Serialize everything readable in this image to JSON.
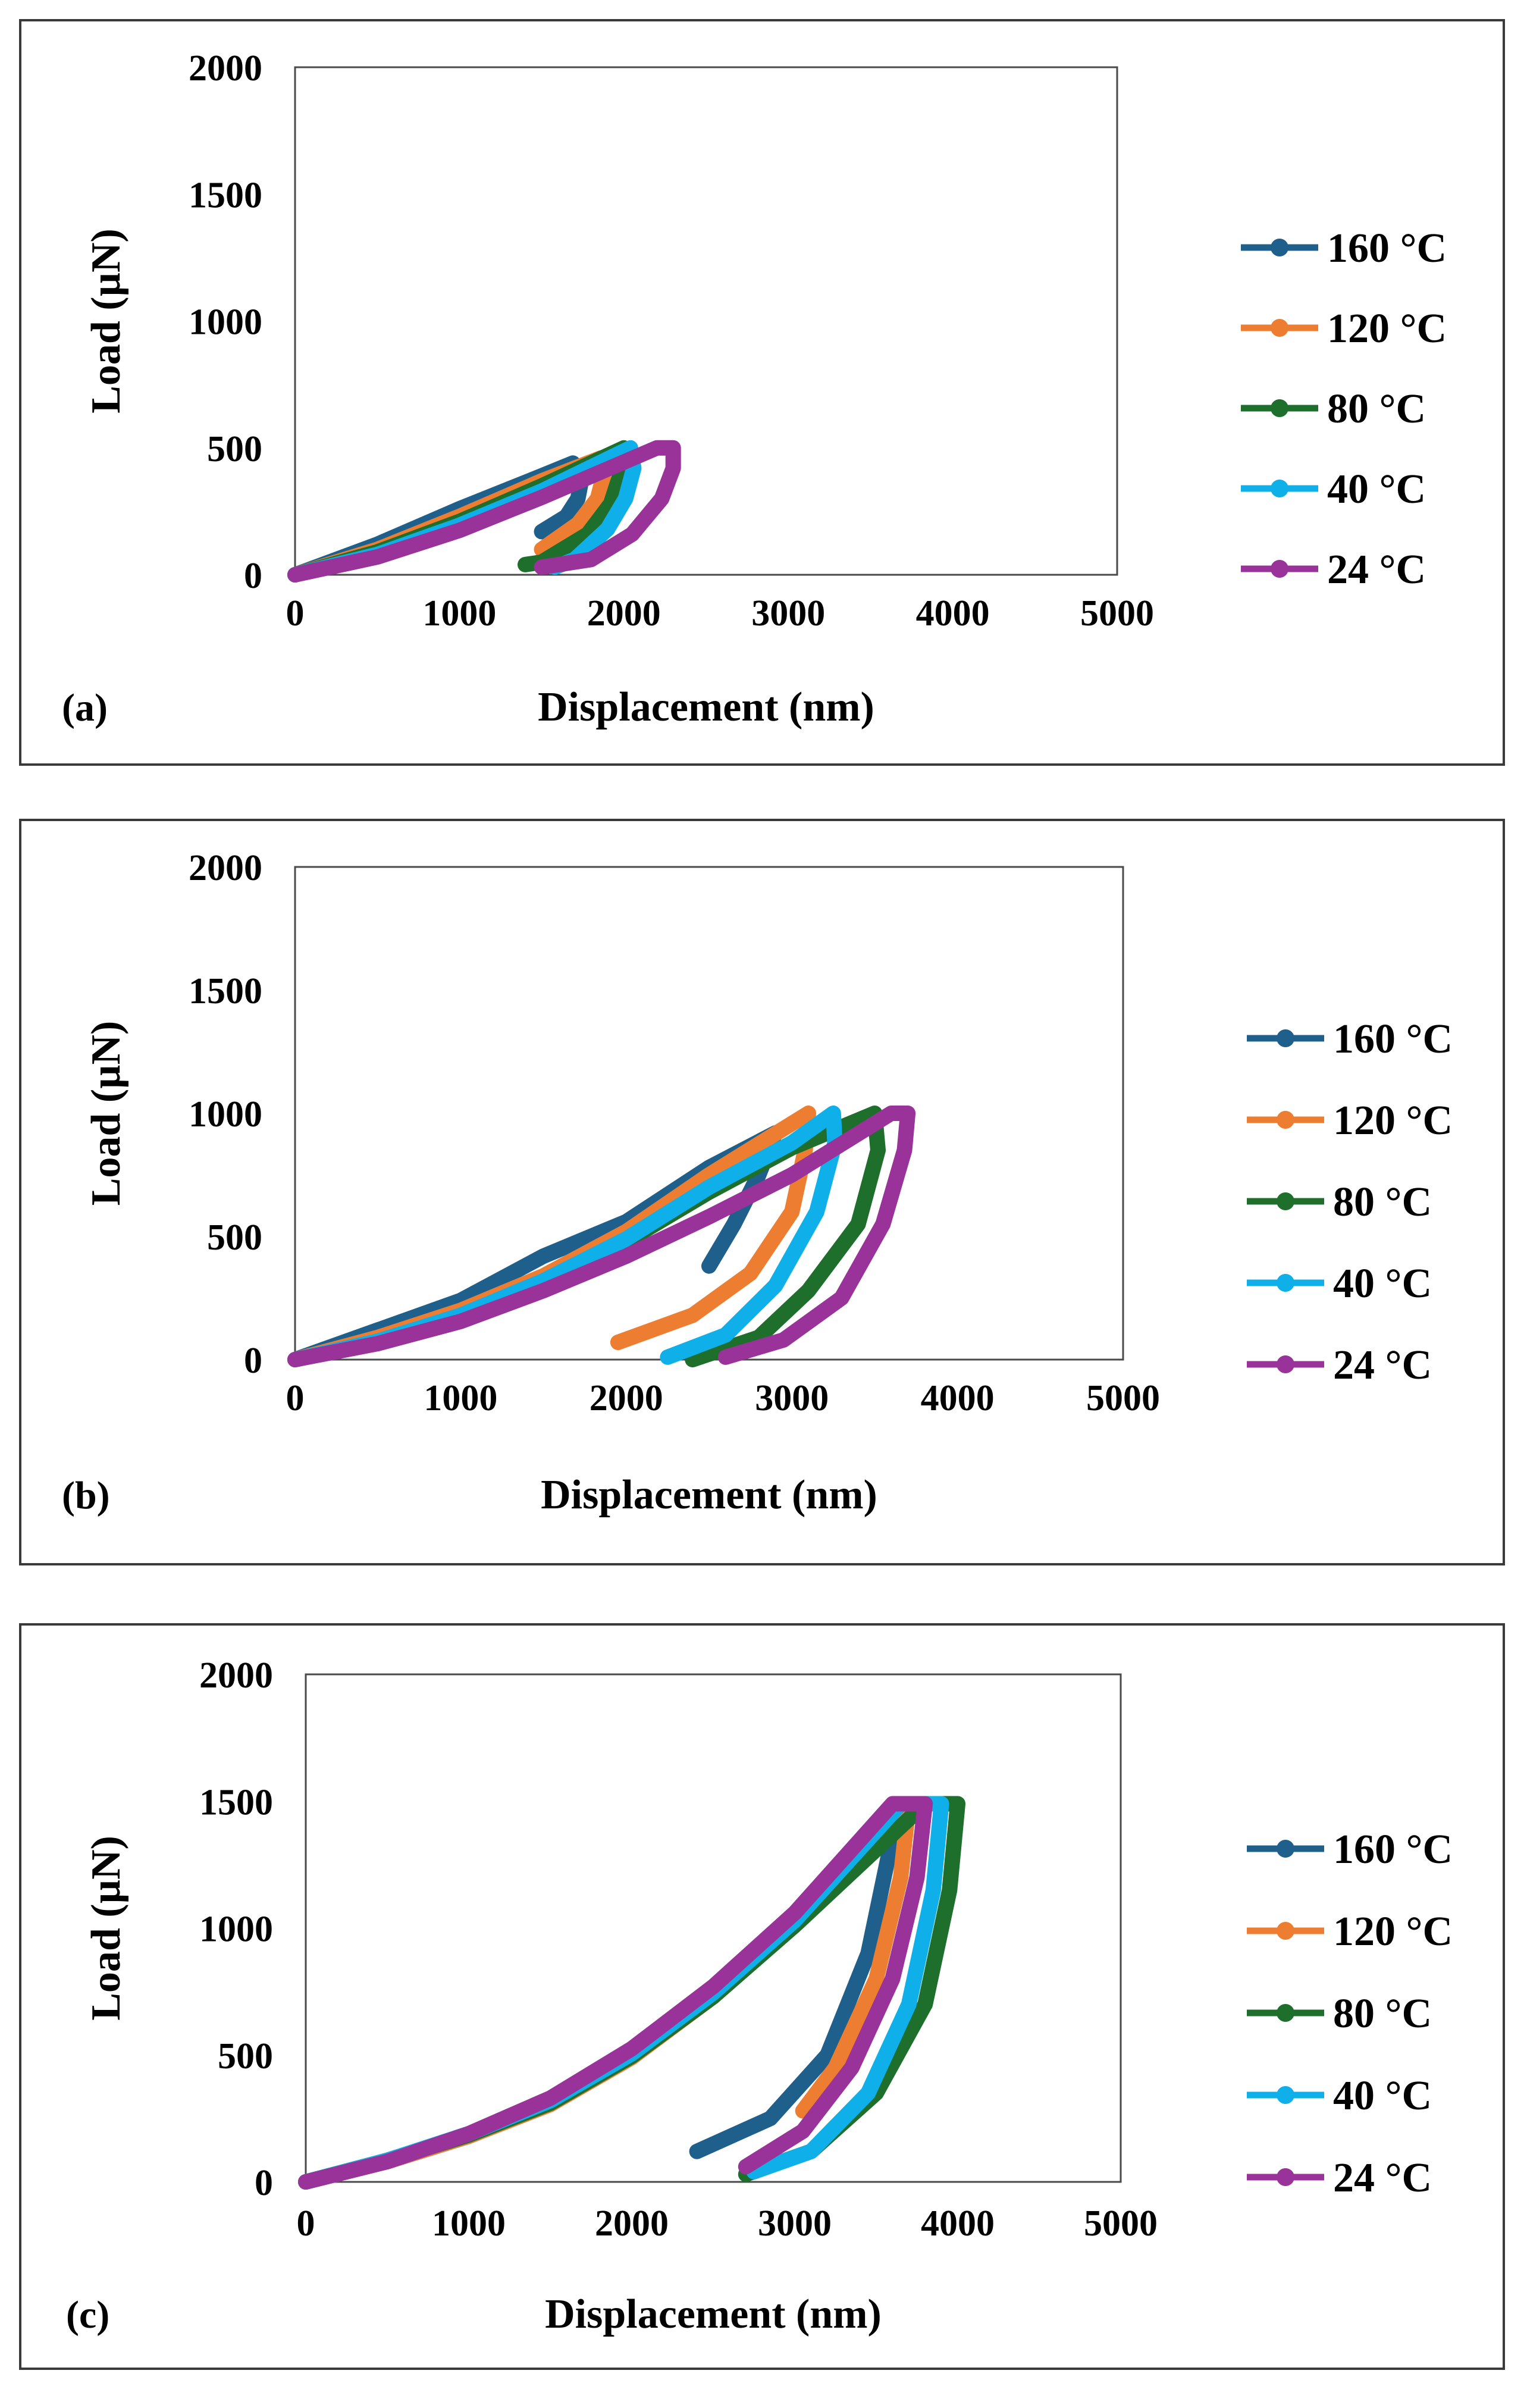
{
  "chart_data": [
    {
      "type": "line",
      "panel": "(a)",
      "xlabel": "Displacement (nm)",
      "ylabel": "Load (µN)",
      "xlim": [
        0,
        5000
      ],
      "ylim": [
        0,
        2000
      ],
      "xticks": [
        "0",
        "1000",
        "2000",
        "3000",
        "4000",
        "5000"
      ],
      "yticks": [
        "0",
        "500",
        "1000",
        "1500",
        "2000"
      ],
      "legend_position": "right",
      "series": [
        {
          "name": "160 °C",
          "color": "#1f5f8b",
          "loading": [
            [
              0,
              0
            ],
            [
              500,
              120
            ],
            [
              1000,
              260
            ],
            [
              1500,
              390
            ],
            [
              1690,
              440
            ]
          ],
          "unloading": [
            [
              1690,
              440
            ],
            [
              1750,
              400
            ],
            [
              1720,
              300
            ],
            [
              1650,
              230
            ],
            [
              1500,
              170
            ]
          ]
        },
        {
          "name": "120 °C",
          "color": "#ed7d31",
          "loading": [
            [
              0,
              0
            ],
            [
              500,
              100
            ],
            [
              1000,
              230
            ],
            [
              1500,
              370
            ],
            [
              1860,
              460
            ]
          ],
          "unloading": [
            [
              1860,
              460
            ],
            [
              1880,
              400
            ],
            [
              1840,
              300
            ],
            [
              1720,
              200
            ],
            [
              1500,
              100
            ]
          ]
        },
        {
          "name": "80 °C",
          "color": "#1e6e2c",
          "loading": [
            [
              0,
              0
            ],
            [
              500,
              90
            ],
            [
              1000,
              210
            ],
            [
              1500,
              350
            ],
            [
              2000,
              500
            ]
          ],
          "unloading": [
            [
              2000,
              500
            ],
            [
              1980,
              400
            ],
            [
              1920,
              280
            ],
            [
              1780,
              160
            ],
            [
              1500,
              50
            ],
            [
              1400,
              40
            ]
          ]
        },
        {
          "name": "40 °C",
          "color": "#0fb0ea",
          "loading": [
            [
              0,
              0
            ],
            [
              500,
              80
            ],
            [
              1000,
              195
            ],
            [
              1500,
              330
            ],
            [
              2040,
              500
            ]
          ],
          "unloading": [
            [
              2040,
              500
            ],
            [
              2060,
              420
            ],
            [
              2010,
              300
            ],
            [
              1900,
              180
            ],
            [
              1700,
              60
            ],
            [
              1580,
              30
            ]
          ]
        },
        {
          "name": "24 °C",
          "color": "#993399",
          "loading": [
            [
              0,
              0
            ],
            [
              500,
              70
            ],
            [
              1000,
              175
            ],
            [
              1500,
              305
            ],
            [
              2200,
              500
            ]
          ],
          "unloading": [
            [
              2200,
              500
            ],
            [
              2300,
              500
            ],
            [
              2300,
              420
            ],
            [
              2230,
              300
            ],
            [
              2050,
              160
            ],
            [
              1800,
              60
            ],
            [
              1500,
              30
            ]
          ]
        }
      ]
    },
    {
      "type": "line",
      "panel": "(b)",
      "xlabel": "Displacement (nm)",
      "ylabel": "Load (µN)",
      "xlim": [
        0,
        5000
      ],
      "ylim": [
        0,
        2000
      ],
      "xticks": [
        "0",
        "1000",
        "2000",
        "3000",
        "4000",
        "5000"
      ],
      "yticks": [
        "0",
        "500",
        "1000",
        "1500",
        "2000"
      ],
      "legend_position": "right",
      "series": [
        {
          "name": "160 °C",
          "color": "#1f5f8b",
          "loading": [
            [
              0,
              0
            ],
            [
              500,
              120
            ],
            [
              1000,
              240
            ],
            [
              1500,
              420
            ],
            [
              2000,
              560
            ],
            [
              2500,
              780
            ],
            [
              2900,
              920
            ]
          ],
          "unloading": [
            [
              2900,
              920
            ],
            [
              2800,
              750
            ],
            [
              2650,
              550
            ],
            [
              2500,
              380
            ]
          ]
        },
        {
          "name": "120 °C",
          "color": "#ed7d31",
          "loading": [
            [
              0,
              0
            ],
            [
              500,
              90
            ],
            [
              1000,
              200
            ],
            [
              1500,
              340
            ],
            [
              2000,
              520
            ],
            [
              2500,
              750
            ],
            [
              3100,
              1000
            ]
          ],
          "unloading": [
            [
              3100,
              1000
            ],
            [
              3080,
              850
            ],
            [
              3000,
              600
            ],
            [
              2750,
              350
            ],
            [
              2400,
              180
            ],
            [
              1950,
              70
            ]
          ]
        },
        {
          "name": "80 °C",
          "color": "#1e6e2c",
          "loading": [
            [
              0,
              0
            ],
            [
              500,
              70
            ],
            [
              1000,
              170
            ],
            [
              1500,
              310
            ],
            [
              2000,
              480
            ],
            [
              2500,
              680
            ],
            [
              3000,
              860
            ],
            [
              3500,
              1000
            ]
          ],
          "unloading": [
            [
              3500,
              1000
            ],
            [
              3520,
              850
            ],
            [
              3400,
              550
            ],
            [
              3100,
              280
            ],
            [
              2800,
              90
            ],
            [
              2400,
              0
            ]
          ]
        },
        {
          "name": "40 °C",
          "color": "#0fb0ea",
          "loading": [
            [
              0,
              0
            ],
            [
              500,
              75
            ],
            [
              1000,
              180
            ],
            [
              1500,
              320
            ],
            [
              2000,
              490
            ],
            [
              2500,
              700
            ],
            [
              3000,
              880
            ],
            [
              3250,
              1000
            ]
          ],
          "unloading": [
            [
              3250,
              1000
            ],
            [
              3260,
              880
            ],
            [
              3150,
              600
            ],
            [
              2900,
              300
            ],
            [
              2600,
              100
            ],
            [
              2250,
              10
            ]
          ]
        },
        {
          "name": "24 °C",
          "color": "#993399",
          "loading": [
            [
              0,
              0
            ],
            [
              500,
              65
            ],
            [
              1000,
              155
            ],
            [
              1500,
              280
            ],
            [
              2000,
              420
            ],
            [
              2500,
              580
            ],
            [
              3000,
              750
            ],
            [
              3600,
              1000
            ]
          ],
          "unloading": [
            [
              3600,
              1000
            ],
            [
              3700,
              1000
            ],
            [
              3680,
              850
            ],
            [
              3550,
              550
            ],
            [
              3300,
              250
            ],
            [
              2950,
              80
            ],
            [
              2600,
              10
            ]
          ]
        }
      ]
    },
    {
      "type": "line",
      "panel": "(c)",
      "xlabel": "Displacement (nm)",
      "ylabel": "Load (µN)",
      "xlim": [
        0,
        5000
      ],
      "ylim": [
        0,
        2000
      ],
      "xticks": [
        "0",
        "1000",
        "2000",
        "3000",
        "4000",
        "5000"
      ],
      "yticks": [
        "0",
        "500",
        "1000",
        "1500",
        "2000"
      ],
      "legend_position": "right",
      "series": [
        {
          "name": "160 °C",
          "color": "#1f5f8b",
          "loading": [
            [
              0,
              0
            ],
            [
              500,
              80
            ],
            [
              1000,
              180
            ],
            [
              1500,
              310
            ],
            [
              2000,
              500
            ],
            [
              2500,
              740
            ],
            [
              3000,
              1030
            ],
            [
              3600,
              1450
            ]
          ],
          "unloading": [
            [
              3600,
              1450
            ],
            [
              3580,
              1300
            ],
            [
              3450,
              900
            ],
            [
              3200,
              500
            ],
            [
              2850,
              250
            ],
            [
              2400,
              120
            ]
          ]
        },
        {
          "name": "120 °C",
          "color": "#ed7d31",
          "loading": [
            [
              0,
              0
            ],
            [
              500,
              80
            ],
            [
              1000,
              180
            ],
            [
              1500,
              305
            ],
            [
              2000,
              490
            ],
            [
              2500,
              730
            ],
            [
              3000,
              1020
            ],
            [
              3700,
              1490
            ]
          ],
          "unloading": [
            [
              3700,
              1490
            ],
            [
              3650,
              1200
            ],
            [
              3500,
              800
            ],
            [
              3250,
              450
            ],
            [
              3050,
              280
            ]
          ]
        },
        {
          "name": "80 °C",
          "color": "#1e6e2c",
          "loading": [
            [
              0,
              0
            ],
            [
              500,
              85
            ],
            [
              1000,
              185
            ],
            [
              1500,
              310
            ],
            [
              2000,
              495
            ],
            [
              2500,
              730
            ],
            [
              3000,
              1010
            ],
            [
              3800,
              1490
            ],
            [
              4000,
              1490
            ]
          ],
          "unloading": [
            [
              4000,
              1490
            ],
            [
              3950,
              1150
            ],
            [
              3800,
              700
            ],
            [
              3500,
              350
            ],
            [
              3100,
              120
            ],
            [
              2700,
              30
            ]
          ]
        },
        {
          "name": "40 °C",
          "color": "#0fb0ea",
          "loading": [
            [
              0,
              0
            ],
            [
              500,
              85
            ],
            [
              1000,
              190
            ],
            [
              1500,
              320
            ],
            [
              2000,
              505
            ],
            [
              2500,
              745
            ],
            [
              3000,
              1030
            ],
            [
              3650,
              1490
            ],
            [
              3900,
              1490
            ]
          ],
          "unloading": [
            [
              3900,
              1490
            ],
            [
              3850,
              1150
            ],
            [
              3700,
              700
            ],
            [
              3450,
              350
            ],
            [
              3100,
              120
            ],
            [
              2750,
              40
            ]
          ]
        },
        {
          "name": "24 °C",
          "color": "#993399",
          "loading": [
            [
              0,
              0
            ],
            [
              500,
              80
            ],
            [
              1000,
              190
            ],
            [
              1500,
              330
            ],
            [
              2000,
              525
            ],
            [
              2500,
              770
            ],
            [
              3000,
              1060
            ],
            [
              3600,
              1490
            ],
            [
              3800,
              1490
            ]
          ],
          "unloading": [
            [
              3800,
              1490
            ],
            [
              3750,
              1200
            ],
            [
              3600,
              800
            ],
            [
              3350,
              450
            ],
            [
              3050,
              200
            ],
            [
              2700,
              60
            ]
          ]
        }
      ]
    }
  ]
}
